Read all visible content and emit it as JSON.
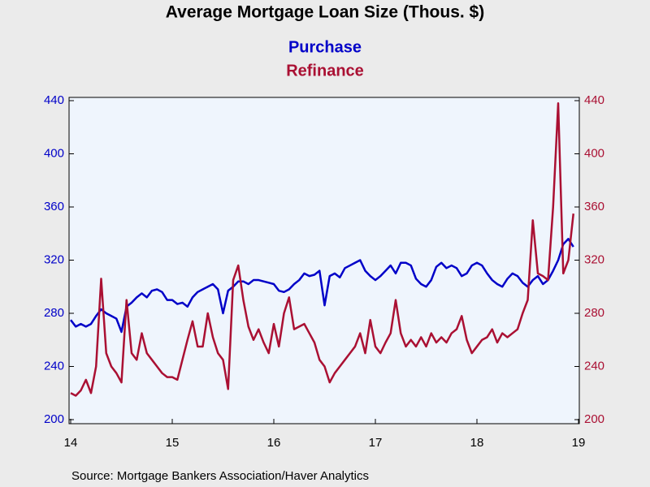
{
  "chart_data": {
    "type": "line",
    "title": "Average Mortgage Loan Size (Thous. $)",
    "source": "Source:  Mortgage Bankers Association/Haver Analytics",
    "x": [
      14.0,
      14.05,
      14.1,
      14.15,
      14.2,
      14.25,
      14.3,
      14.35,
      14.4,
      14.45,
      14.5,
      14.55,
      14.6,
      14.65,
      14.7,
      14.75,
      14.8,
      14.85,
      14.9,
      14.95,
      15.0,
      15.05,
      15.1,
      15.15,
      15.2,
      15.25,
      15.3,
      15.35,
      15.4,
      15.45,
      15.5,
      15.55,
      15.6,
      15.65,
      15.7,
      15.75,
      15.8,
      15.85,
      15.9,
      15.95,
      16.0,
      16.05,
      16.1,
      16.15,
      16.2,
      16.25,
      16.3,
      16.35,
      16.4,
      16.45,
      16.5,
      16.55,
      16.6,
      16.65,
      16.7,
      16.75,
      16.8,
      16.85,
      16.9,
      16.95,
      17.0,
      17.05,
      17.1,
      17.15,
      17.2,
      17.25,
      17.3,
      17.35,
      17.4,
      17.45,
      17.5,
      17.55,
      17.6,
      17.65,
      17.7,
      17.75,
      17.8,
      17.85,
      17.9,
      17.95,
      18.0,
      18.05,
      18.1,
      18.15,
      18.2,
      18.25,
      18.3,
      18.35,
      18.4,
      18.45,
      18.5,
      18.55,
      18.6,
      18.65,
      18.7,
      18.75,
      18.8,
      18.85,
      18.9,
      18.95
    ],
    "xlim": [
      14,
      19
    ],
    "xticks": [
      14,
      15,
      16,
      17,
      18,
      19
    ],
    "ylim": [
      200,
      440
    ],
    "yticks": [
      200,
      240,
      280,
      320,
      360,
      400,
      440
    ],
    "y2lim": [
      200,
      440
    ],
    "y2ticks": [
      200,
      240,
      280,
      320,
      360,
      400,
      440
    ],
    "series": [
      {
        "name": "Purchase",
        "color": "#0000c8",
        "axis": "y",
        "values": [
          275,
          270,
          272,
          270,
          272,
          278,
          283,
          280,
          278,
          276,
          266,
          285,
          288,
          292,
          295,
          292,
          297,
          298,
          296,
          290,
          290,
          287,
          288,
          285,
          292,
          296,
          298,
          300,
          302,
          298,
          280,
          297,
          300,
          304,
          304,
          302,
          305,
          305,
          304,
          303,
          302,
          297,
          296,
          298,
          302,
          305,
          310,
          308,
          309,
          312,
          286,
          308,
          310,
          307,
          314,
          316,
          318,
          320,
          312,
          308,
          305,
          308,
          312,
          316,
          310,
          318,
          318,
          316,
          306,
          302,
          300,
          305,
          315,
          318,
          314,
          316,
          314,
          308,
          310,
          316,
          318,
          316,
          310,
          305,
          302,
          300,
          306,
          310,
          308,
          303,
          300,
          305,
          308,
          302,
          305,
          312,
          320,
          332,
          336,
          330
        ]
      },
      {
        "name": "Refinance",
        "color": "#aa1033",
        "axis": "y2",
        "values": [
          220,
          218,
          222,
          230,
          220,
          240,
          306,
          250,
          240,
          235,
          228,
          290,
          250,
          245,
          265,
          250,
          245,
          240,
          235,
          232,
          232,
          230,
          245,
          260,
          274,
          255,
          255,
          280,
          262,
          250,
          245,
          223,
          305,
          316,
          290,
          270,
          260,
          268,
          258,
          250,
          272,
          255,
          280,
          292,
          268,
          270,
          272,
          265,
          258,
          245,
          240,
          228,
          235,
          240,
          245,
          250,
          255,
          265,
          250,
          275,
          255,
          250,
          258,
          265,
          290,
          265,
          255,
          260,
          255,
          262,
          255,
          265,
          258,
          262,
          258,
          265,
          268,
          278,
          260,
          250,
          255,
          260,
          262,
          268,
          258,
          265,
          262,
          265,
          268,
          280,
          290,
          350,
          310,
          308,
          305,
          360,
          438,
          310,
          320,
          355
        ]
      }
    ]
  }
}
